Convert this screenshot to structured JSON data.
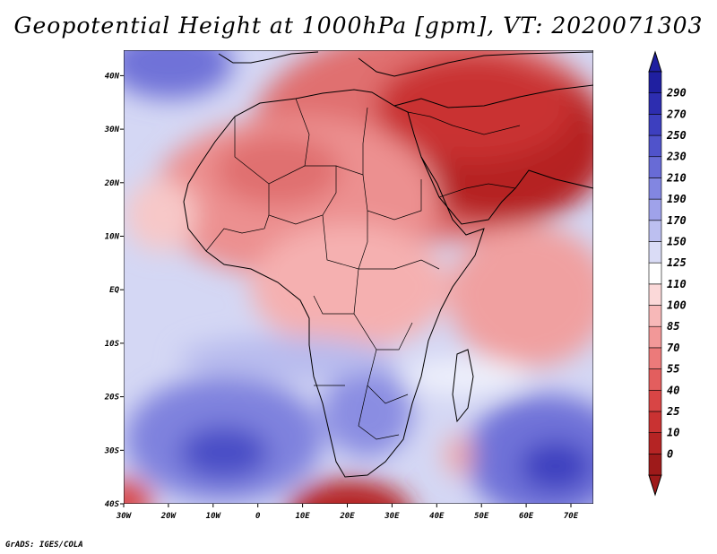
{
  "title": "Geopotential Height at 1000hPa [gpm], VT: 2020071303",
  "credit": "GrADS: IGES/COLA",
  "map": {
    "lon_ticks": [
      "30W",
      "20W",
      "10W",
      "0",
      "10E",
      "20E",
      "30E",
      "40E",
      "50E",
      "60E",
      "70E"
    ],
    "lat_ticks": [
      "40S",
      "30S",
      "20S",
      "10S",
      "EQ",
      "10N",
      "20N",
      "30N",
      "40N"
    ]
  },
  "colorbar": {
    "levels": [
      "0",
      "10",
      "25",
      "40",
      "55",
      "70",
      "85",
      "100",
      "110",
      "125",
      "150",
      "170",
      "190",
      "210",
      "230",
      "250",
      "270",
      "290"
    ],
    "colors": [
      "#9e1a1a",
      "#b52424",
      "#c93232",
      "#d84545",
      "#e35e5e",
      "#ec7a7a",
      "#f29898",
      "#f7b8b8",
      "#fbd9d9",
      "#ffffff",
      "#dadcf6",
      "#bcbff0",
      "#9fa2ea",
      "#8286e1",
      "#686bd6",
      "#5053cb",
      "#3d3fbf",
      "#2d2db0",
      "#1f1fa0"
    ]
  }
}
